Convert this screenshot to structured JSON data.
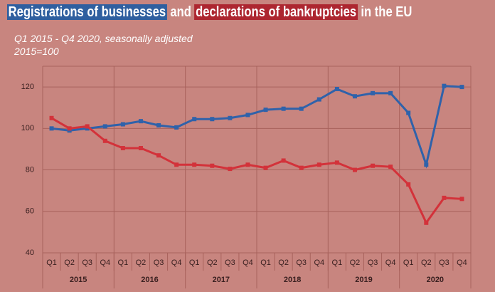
{
  "chart_data": {
    "type": "line",
    "title_links": [
      "and",
      "in the EU"
    ],
    "subtitle": "Q1 2015  - Q4 2020, seasonally adjusted",
    "note": "2015=100",
    "categories": [
      "Q1",
      "Q2",
      "Q3",
      "Q4",
      "Q1",
      "Q2",
      "Q3",
      "Q4",
      "Q1",
      "Q2",
      "Q3",
      "Q4",
      "Q1",
      "Q2",
      "Q3",
      "Q4",
      "Q1",
      "Q2",
      "Q3",
      "Q4",
      "Q1",
      "Q2",
      "Q3",
      "Q4"
    ],
    "years": [
      "2015",
      "2016",
      "2017",
      "2018",
      "2019",
      "2020"
    ],
    "series": [
      {
        "name": "Registrations of businesses",
        "color": "#2f62aa",
        "values": [
          100,
          99,
          100,
          101,
          102,
          103.5,
          101.5,
          100.5,
          104.5,
          104.5,
          105,
          106.5,
          109,
          109.5,
          109.5,
          114,
          119,
          115.5,
          117,
          117,
          107.5,
          82.5,
          120.5,
          120
        ]
      },
      {
        "name": "declarations of bankruptcies",
        "color": "#d3323a",
        "values": [
          105,
          100,
          101,
          94,
          90.5,
          90.5,
          87,
          82.5,
          82.5,
          82,
          80.5,
          82.5,
          81,
          84.5,
          81,
          82.5,
          83.5,
          80,
          82,
          81.5,
          73,
          54.5,
          66.5,
          66
        ]
      }
    ],
    "ylim": [
      40,
      130
    ],
    "yticks": [
      40,
      60,
      80,
      100,
      120
    ],
    "grid": true
  }
}
